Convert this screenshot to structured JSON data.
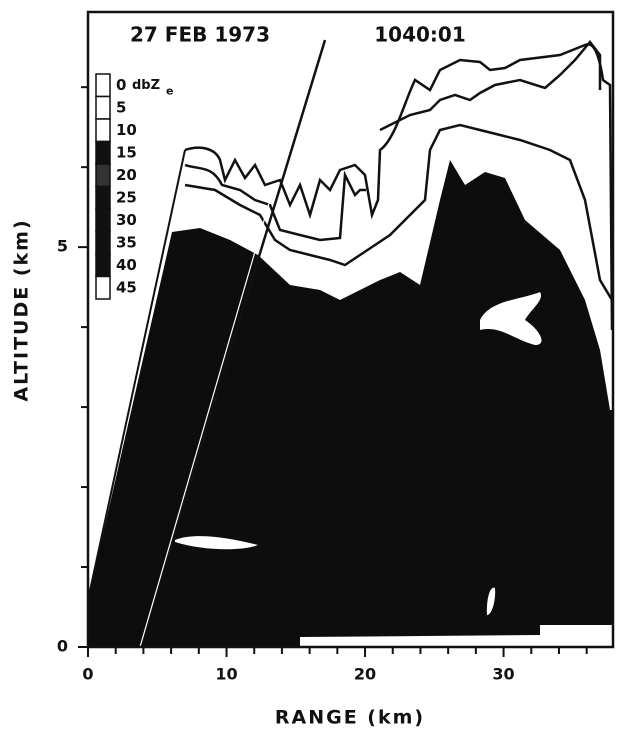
{
  "chart_data": {
    "type": "rhi",
    "title": "27 FEB 1973",
    "time": "1040:01",
    "xlabel": "RANGE (km)",
    "ylabel": "ALTITUDE (km)",
    "xlim": [
      0,
      37.9
    ],
    "xticks": [
      0,
      10,
      20,
      30
    ],
    "xminorticks": [
      2,
      4,
      6,
      8,
      12,
      14,
      16,
      18,
      22,
      24,
      26,
      28,
      32,
      34,
      36
    ],
    "ylim": [
      0,
      7.94
    ],
    "yticks": [
      0,
      5
    ],
    "yminorticks": [
      1,
      2,
      3,
      4,
      6,
      7
    ],
    "legend": {
      "unit": "dbZ",
      "unit_subscript": "e",
      "levels": [
        0,
        5,
        10,
        15,
        20,
        25,
        30,
        35,
        40,
        45
      ],
      "colors": [
        "#ffffff",
        "#ffffff",
        "#ffffff",
        "#111111",
        "#333333",
        "#111111",
        "#111111",
        "#111111",
        "#111111",
        "#ffffff"
      ]
    }
  }
}
